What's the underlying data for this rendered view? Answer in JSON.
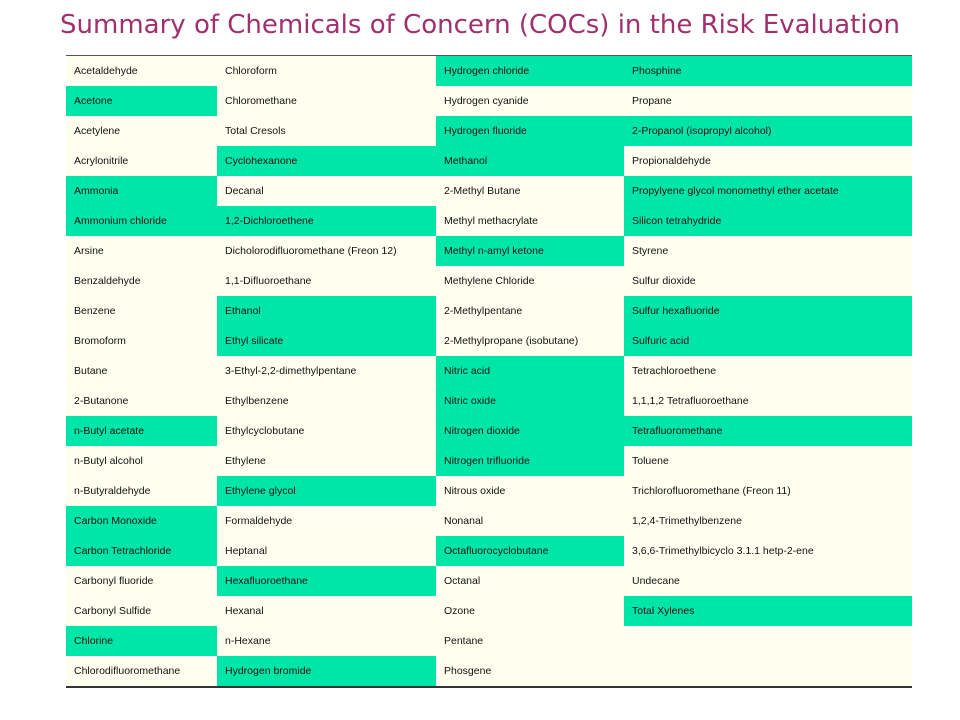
{
  "title": "Summary of Chemicals of Concern (COCs) in the Risk Evaluation",
  "colors": {
    "title": "#a0306e",
    "highlight": "#00e6a8",
    "plain": "#fffff0"
  },
  "rows": [
    [
      {
        "t": "Acetaldehyde",
        "h": false
      },
      {
        "t": "Chloroform",
        "h": false
      },
      {
        "t": "Hydrogen chloride",
        "h": true
      },
      {
        "t": "Phosphine",
        "h": true
      }
    ],
    [
      {
        "t": "Acetone",
        "h": true
      },
      {
        "t": "Chloromethane",
        "h": false
      },
      {
        "t": "Hydrogen cyanide",
        "h": false
      },
      {
        "t": "Propane",
        "h": false
      }
    ],
    [
      {
        "t": "Acetylene",
        "h": false
      },
      {
        "t": "Total Cresols",
        "h": false
      },
      {
        "t": "Hydrogen fluoride",
        "h": true
      },
      {
        "t": "2-Propanol (isopropyl alcohol)",
        "h": true
      }
    ],
    [
      {
        "t": "Acrylonitrile",
        "h": false
      },
      {
        "t": "Cyclohexanone",
        "h": true
      },
      {
        "t": "Methanol",
        "h": true
      },
      {
        "t": "Propionaldehyde",
        "h": false
      }
    ],
    [
      {
        "t": "Ammonia",
        "h": true
      },
      {
        "t": "Decanal",
        "h": false
      },
      {
        "t": "2-Methyl Butane",
        "h": false
      },
      {
        "t": "Propylyene glycol monomethyl ether acetate",
        "h": true
      }
    ],
    [
      {
        "t": "Ammonium chloride",
        "h": true
      },
      {
        "t": "1,2-Dichloroethene",
        "h": true
      },
      {
        "t": "Methyl methacrylate",
        "h": false
      },
      {
        "t": "Silicon tetrahydride",
        "h": true
      }
    ],
    [
      {
        "t": "Arsine",
        "h": false
      },
      {
        "t": "Dicholorodifluoromethane (Freon 12)",
        "h": false
      },
      {
        "t": "Methyl n-amyl ketone",
        "h": true
      },
      {
        "t": "Styrene",
        "h": false
      }
    ],
    [
      {
        "t": "Benzaldehyde",
        "h": false
      },
      {
        "t": "1,1-Difluoroethane",
        "h": false
      },
      {
        "t": "Methylene Chloride",
        "h": false
      },
      {
        "t": "Sulfur dioxide",
        "h": false
      }
    ],
    [
      {
        "t": "Benzene",
        "h": false
      },
      {
        "t": "Ethanol",
        "h": true
      },
      {
        "t": "2-Methylpentane",
        "h": false
      },
      {
        "t": "Sulfur hexafluoride",
        "h": true
      }
    ],
    [
      {
        "t": "Bromoform",
        "h": false
      },
      {
        "t": "Ethyl silicate",
        "h": true
      },
      {
        "t": "2-Methylpropane (isobutane)",
        "h": false
      },
      {
        "t": "Sulfuric acid",
        "h": true
      }
    ],
    [
      {
        "t": "Butane",
        "h": false
      },
      {
        "t": "3-Ethyl-2,2-dimethylpentane",
        "h": false
      },
      {
        "t": "Nitric acid",
        "h": true
      },
      {
        "t": "Tetrachloroethene",
        "h": false
      }
    ],
    [
      {
        "t": "2-Butanone",
        "h": false
      },
      {
        "t": "Ethylbenzene",
        "h": false
      },
      {
        "t": "Nitric oxide",
        "h": true
      },
      {
        "t": "1,1,1,2 Tetrafluoroethane",
        "h": false
      }
    ],
    [
      {
        "t": "n-Butyl acetate",
        "h": true
      },
      {
        "t": "Ethylcyclobutane",
        "h": false
      },
      {
        "t": "Nitrogen dioxide",
        "h": true
      },
      {
        "t": "Tetrafluoromethane",
        "h": true
      }
    ],
    [
      {
        "t": "n-Butyl alcohol",
        "h": false
      },
      {
        "t": "Ethylene",
        "h": false
      },
      {
        "t": "Nitrogen trifluoride",
        "h": true
      },
      {
        "t": "Toluene",
        "h": false
      }
    ],
    [
      {
        "t": "n-Butyraldehyde",
        "h": false
      },
      {
        "t": "Ethylene glycol",
        "h": true
      },
      {
        "t": "Nitrous oxide",
        "h": false
      },
      {
        "t": "Trichlorofluoromethane (Freon 11)",
        "h": false
      }
    ],
    [
      {
        "t": "Carbon Monoxide",
        "h": true
      },
      {
        "t": "Formaldehyde",
        "h": false
      },
      {
        "t": "Nonanal",
        "h": false
      },
      {
        "t": "1,2,4-Trimethylbenzene",
        "h": false
      }
    ],
    [
      {
        "t": "Carbon Tetrachloride",
        "h": true
      },
      {
        "t": "Heptanal",
        "h": false
      },
      {
        "t": "Octafluorocyclobutane",
        "h": true
      },
      {
        "t": "3,6,6-Trimethylbicyclo 3.1.1 hetp-2-ene",
        "h": false
      }
    ],
    [
      {
        "t": "Carbonyl fluoride",
        "h": false
      },
      {
        "t": "Hexafluoroethane",
        "h": true
      },
      {
        "t": "Octanal",
        "h": false
      },
      {
        "t": "Undecane",
        "h": false
      }
    ],
    [
      {
        "t": "Carbonyl Sulfide",
        "h": false
      },
      {
        "t": "Hexanal",
        "h": false
      },
      {
        "t": "Ozone",
        "h": false
      },
      {
        "t": "Total Xylenes",
        "h": true
      }
    ],
    [
      {
        "t": "Chlorine",
        "h": true
      },
      {
        "t": "n-Hexane",
        "h": false
      },
      {
        "t": "Pentane",
        "h": false
      },
      {
        "t": "",
        "h": false
      }
    ],
    [
      {
        "t": "Chlorodifluoromethane",
        "h": false
      },
      {
        "t": "Hydrogen bromide",
        "h": true
      },
      {
        "t": "Phosgene",
        "h": false
      },
      {
        "t": "",
        "h": false
      }
    ]
  ]
}
